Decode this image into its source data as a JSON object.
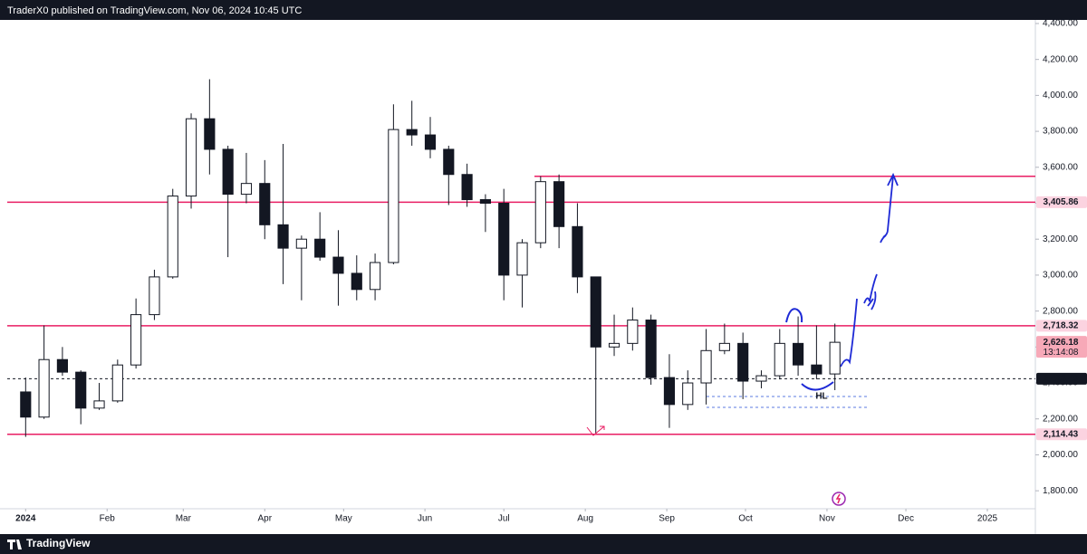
{
  "chart_data": {
    "type": "candlestick",
    "header": "TraderX0 published on TradingView.com, Nov 06, 2024 10:45 UTC",
    "footer": "TradingView",
    "x": [
      0,
      1,
      2,
      3,
      4,
      5,
      6,
      7,
      8,
      9,
      10,
      11,
      12,
      13,
      14,
      15,
      16,
      17,
      18,
      19,
      20,
      21,
      22,
      23,
      24,
      25,
      26,
      27,
      28,
      29,
      30,
      31,
      32,
      33,
      34,
      35,
      36,
      37,
      38,
      39,
      40,
      41,
      42,
      43,
      44
    ],
    "open": [
      2350,
      2210,
      2530,
      2460,
      2260,
      2300,
      2500,
      2780,
      2990,
      3440,
      3870,
      3700,
      3450,
      3510,
      3280,
      3150,
      3200,
      3100,
      3010,
      2920,
      3070,
      3810,
      3780,
      3700,
      3560,
      3420,
      3400,
      3000,
      3180,
      3520,
      3270,
      2990,
      2600,
      2620,
      2750,
      2430,
      2280,
      2400,
      2580,
      2620,
      2410,
      2440,
      2620,
      2500,
      2450
    ],
    "high": [
      2430,
      2720,
      2600,
      2470,
      2400,
      2530,
      2870,
      3030,
      3480,
      3900,
      4090,
      3720,
      3680,
      3640,
      3730,
      3220,
      3350,
      3250,
      3110,
      3120,
      3950,
      3970,
      3880,
      3720,
      3620,
      3450,
      3480,
      3200,
      3550,
      3560,
      3400,
      2990,
      2780,
      2820,
      2780,
      2560,
      2470,
      2700,
      2730,
      2680,
      2470,
      2700,
      2770,
      2720,
      2730
    ],
    "low": [
      2100,
      2200,
      2440,
      2170,
      2250,
      2290,
      2480,
      2750,
      2980,
      3370,
      3560,
      3100,
      3400,
      3200,
      2950,
      2860,
      3080,
      2830,
      2860,
      2860,
      3060,
      3720,
      3650,
      3390,
      3380,
      3240,
      2860,
      2820,
      3150,
      3150,
      2900,
      2120,
      2550,
      2580,
      2390,
      2150,
      2250,
      2280,
      2560,
      2310,
      2370,
      2420,
      2440,
      2420,
      2360
    ],
    "close": [
      2210,
      2530,
      2460,
      2260,
      2300,
      2500,
      2780,
      2990,
      3440,
      3870,
      3700,
      3450,
      3510,
      3280,
      3150,
      3200,
      3100,
      3010,
      2920,
      3070,
      3810,
      3780,
      3700,
      3560,
      3420,
      3400,
      3000,
      3180,
      3520,
      3270,
      2990,
      2600,
      2620,
      2750,
      2430,
      2280,
      2400,
      2580,
      2620,
      2410,
      2440,
      2620,
      2500,
      2450,
      2626.18
    ],
    "up_color": "#ffffff",
    "down_color": "#131722",
    "outline_color": "#131722",
    "xlim": [
      -1,
      54.9
    ],
    "xticks": [
      {
        "value": 0,
        "label": "2024"
      },
      {
        "value": 4.43,
        "label": "Feb"
      },
      {
        "value": 8.57,
        "label": "Mar"
      },
      {
        "value": 13,
        "label": "Apr"
      },
      {
        "value": 17.29,
        "label": "May"
      },
      {
        "value": 21.71,
        "label": "Jun"
      },
      {
        "value": 26,
        "label": "Jul"
      },
      {
        "value": 30.43,
        "label": "Aug"
      },
      {
        "value": 34.86,
        "label": "Sep"
      },
      {
        "value": 39.14,
        "label": "Oct"
      },
      {
        "value": 43.57,
        "label": "Nov"
      },
      {
        "value": 47.86,
        "label": "Dec"
      },
      {
        "value": 52.29,
        "label": "2025"
      }
    ],
    "ylim": [
      1700,
      4420
    ],
    "yticks": [
      {
        "value": 1800,
        "label": "1,800.00"
      },
      {
        "value": 2000,
        "label": "2,000.00"
      },
      {
        "value": 2200,
        "label": "2,200.00"
      },
      {
        "value": 2400,
        "label": "2,400.00"
      },
      {
        "value": 2600,
        "label": "2,600.00"
      },
      {
        "value": 2800,
        "label": "2,800.00"
      },
      {
        "value": 3000,
        "label": "3,000.00"
      },
      {
        "value": 3200,
        "label": "3,200.00"
      },
      {
        "value": 3400,
        "label": "3,400.00"
      },
      {
        "value": 3600,
        "label": "3,600.00"
      },
      {
        "value": 3800,
        "label": "3,800.00"
      },
      {
        "value": 4000,
        "label": "4,000.00"
      },
      {
        "value": 4200,
        "label": "4,200.00"
      },
      {
        "value": 4400,
        "label": "4,400.00"
      }
    ],
    "grid": false,
    "top_level": {
      "value": 3550,
      "color": "#e91e63"
    },
    "price_lines": [
      {
        "value": 3405.86,
        "label": "3,405.86",
        "color": "#e91e63"
      },
      {
        "value": 2718.32,
        "label": "2,718.32",
        "color": "#e91e63"
      },
      {
        "value": 2114.43,
        "label": "2,114.43",
        "color": "#e91e63"
      }
    ],
    "reference_line": {
      "value": 2423.49,
      "label": "2,423.49",
      "color": "#131722"
    },
    "last_price": {
      "value": 2626.18,
      "label": "2,626.18",
      "countdown": "13:14:08",
      "color": "#f23645"
    },
    "annotations": [
      {
        "text": "HL"
      }
    ]
  }
}
